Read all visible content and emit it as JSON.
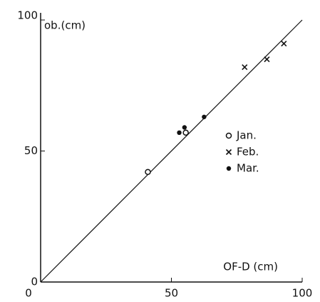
{
  "chart_data": {
    "type": "scatter",
    "x_label": "OF-D (cm)",
    "y_label": "ob.(cm)",
    "xlim": [
      0,
      100
    ],
    "ylim": [
      0,
      100
    ],
    "xticks": [
      0,
      50,
      100
    ],
    "yticks": [
      0,
      50,
      100
    ],
    "diagonal": true,
    "series": [
      {
        "name": "Jan.",
        "marker": "circle",
        "color": "#111",
        "x": [
          41,
          55.5
        ],
        "y": [
          42,
          57
        ]
      },
      {
        "name": "Feb.",
        "marker": "cross",
        "color": "#111",
        "x": [
          78,
          86.5,
          93
        ],
        "y": [
          82,
          85,
          91
        ]
      },
      {
        "name": "Mar.",
        "marker": "dot",
        "color": "#111",
        "x": [
          53,
          55,
          62.5
        ],
        "y": [
          57,
          59,
          63
        ]
      }
    ]
  }
}
